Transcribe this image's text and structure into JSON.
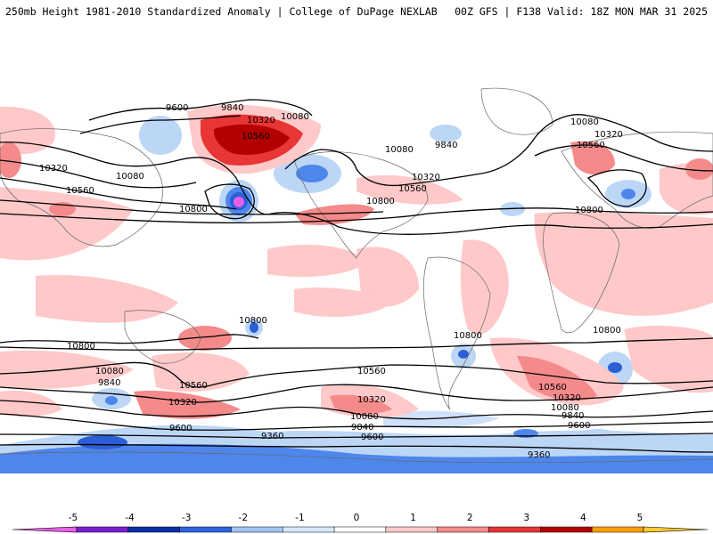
{
  "header": {
    "title": "250mb Height 1981-2010 Standardized Anomaly | College of DuPage NEXLAB",
    "run_info": "00Z GFS | F138 Valid: 18Z MON MAR 31 2025"
  },
  "colorbar": {
    "ticks": [
      "-5",
      "-4",
      "-3",
      "-2",
      "-1",
      "0",
      "1",
      "2",
      "3",
      "4",
      "5"
    ],
    "colors": [
      "#e85ee8",
      "#7a1fcf",
      "#0a2fa8",
      "#2e62e0",
      "#9fc4f5",
      "#d6e8fc",
      "#ffffff",
      "#ffc9c9",
      "#f58a8a",
      "#e83535",
      "#b30000",
      "#ffa000",
      "#ffcc33"
    ]
  },
  "contour_labels": [
    "9600",
    "9840",
    "10320",
    "10080",
    "10560",
    "10080",
    "10320",
    "10560",
    "10800",
    "9840",
    "10080",
    "10320",
    "10560",
    "10800",
    "10080",
    "10320",
    "10560",
    "10800",
    "10800",
    "10800",
    "10800",
    "10800",
    "10080",
    "9840",
    "10560",
    "10320",
    "10560",
    "10320",
    "10080",
    "9840",
    "9600",
    "9360",
    "9600",
    "10560",
    "10320",
    "10080",
    "9840",
    "9600",
    "9360"
  ]
}
